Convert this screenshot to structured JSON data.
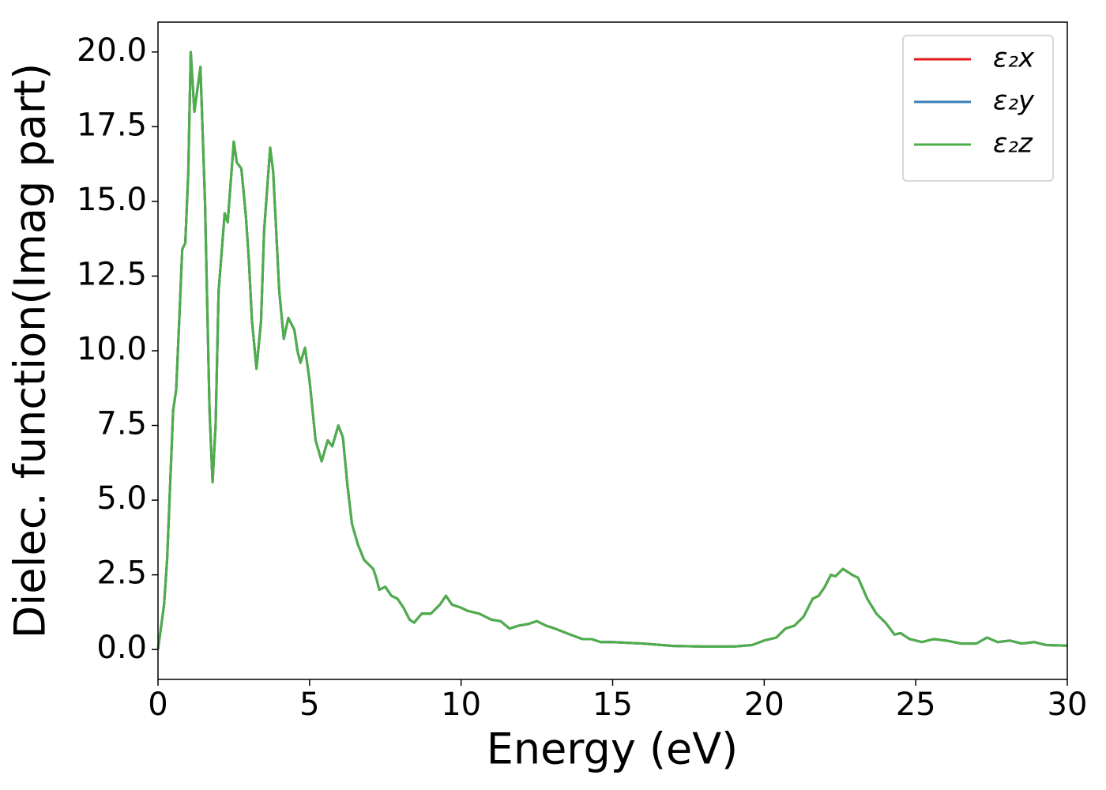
{
  "chart_data": {
    "type": "line",
    "xlabel": "Energy (eV)",
    "ylabel": "Dielec. function(Imag part)",
    "x": [
      0,
      0.2,
      0.3,
      0.4,
      0.5,
      0.6,
      0.7,
      0.8,
      0.9,
      1.0,
      1.08,
      1.2,
      1.4,
      1.55,
      1.7,
      1.8,
      1.9,
      2.0,
      2.2,
      2.3,
      2.5,
      2.6,
      2.75,
      2.9,
      3.0,
      3.1,
      3.25,
      3.4,
      3.5,
      3.7,
      3.8,
      3.9,
      4.0,
      4.15,
      4.3,
      4.5,
      4.6,
      4.7,
      4.85,
      5.0,
      5.1,
      5.2,
      5.4,
      5.6,
      5.75,
      5.95,
      6.1,
      6.25,
      6.4,
      6.6,
      6.8,
      7.1,
      7.2,
      7.3,
      7.5,
      7.7,
      7.9,
      8.1,
      8.3,
      8.45,
      8.7,
      9.0,
      9.3,
      9.5,
      9.7,
      10.0,
      10.2,
      10.6,
      11.0,
      11.3,
      11.6,
      11.9,
      12.2,
      12.5,
      12.8,
      13.1,
      13.6,
      14.0,
      14.3,
      14.6,
      15.0,
      16,
      17,
      18,
      19,
      19.6,
      20.0,
      20.4,
      20.7,
      21.0,
      21.3,
      21.6,
      21.8,
      22.0,
      22.2,
      22.35,
      22.6,
      22.9,
      23.1,
      23.4,
      23.7,
      24.0,
      24.3,
      24.5,
      24.8,
      25.2,
      25.6,
      26.0,
      26.5,
      27.0,
      27.35,
      27.7,
      28.1,
      28.5,
      28.9,
      29.3,
      30
    ],
    "series": [
      {
        "name": "ε₂x",
        "color": "#e41a1c",
        "values": [
          0,
          1.5,
          3,
          5.5,
          8.0,
          8.7,
          11,
          13.4,
          13.6,
          16,
          20.0,
          18.0,
          19.5,
          15,
          8,
          5.6,
          7.5,
          12,
          14.6,
          14.3,
          17.0,
          16.3,
          16.1,
          14.5,
          13,
          11,
          9.4,
          11,
          14,
          16.8,
          16,
          14,
          12,
          10.4,
          11.1,
          10.7,
          10.0,
          9.6,
          10.1,
          9.0,
          8,
          7.0,
          6.3,
          7.0,
          6.8,
          7.5,
          7.1,
          5.5,
          4.2,
          3.5,
          3.0,
          2.7,
          2.4,
          2.0,
          2.1,
          1.8,
          1.7,
          1.4,
          1.0,
          0.9,
          1.2,
          1.2,
          1.5,
          1.8,
          1.5,
          1.4,
          1.3,
          1.2,
          1.0,
          0.95,
          0.7,
          0.8,
          0.85,
          0.95,
          0.8,
          0.7,
          0.5,
          0.35,
          0.35,
          0.25,
          0.25,
          0.2,
          0.12,
          0.1,
          0.1,
          0.15,
          0.3,
          0.4,
          0.7,
          0.8,
          1.1,
          1.7,
          1.8,
          2.1,
          2.5,
          2.45,
          2.7,
          2.5,
          2.4,
          1.7,
          1.2,
          0.9,
          0.5,
          0.55,
          0.35,
          0.25,
          0.35,
          0.3,
          0.2,
          0.2,
          0.4,
          0.25,
          0.3,
          0.2,
          0.25,
          0.15,
          0.13
        ]
      },
      {
        "name": "ε₂y",
        "color": "#377eb8",
        "values": [
          0,
          1.5,
          3,
          5.5,
          8.0,
          8.7,
          11,
          13.4,
          13.6,
          16,
          20.0,
          18.0,
          19.5,
          15,
          8,
          5.6,
          7.5,
          12,
          14.6,
          14.3,
          17.0,
          16.3,
          16.1,
          14.5,
          13,
          11,
          9.4,
          11,
          14,
          16.8,
          16,
          14,
          12,
          10.4,
          11.1,
          10.7,
          10.0,
          9.6,
          10.1,
          9.0,
          8,
          7.0,
          6.3,
          7.0,
          6.8,
          7.5,
          7.1,
          5.5,
          4.2,
          3.5,
          3.0,
          2.7,
          2.4,
          2.0,
          2.1,
          1.8,
          1.7,
          1.4,
          1.0,
          0.9,
          1.2,
          1.2,
          1.5,
          1.8,
          1.5,
          1.4,
          1.3,
          1.2,
          1.0,
          0.95,
          0.7,
          0.8,
          0.85,
          0.95,
          0.8,
          0.7,
          0.5,
          0.35,
          0.35,
          0.25,
          0.25,
          0.2,
          0.12,
          0.1,
          0.1,
          0.15,
          0.3,
          0.4,
          0.7,
          0.8,
          1.1,
          1.7,
          1.8,
          2.1,
          2.5,
          2.45,
          2.7,
          2.5,
          2.4,
          1.7,
          1.2,
          0.9,
          0.5,
          0.55,
          0.35,
          0.25,
          0.35,
          0.3,
          0.2,
          0.2,
          0.4,
          0.25,
          0.3,
          0.2,
          0.25,
          0.15,
          0.13
        ]
      },
      {
        "name": "ε₂z",
        "color": "#4daf4a",
        "values": [
          0,
          1.5,
          3,
          5.5,
          8.0,
          8.7,
          11,
          13.4,
          13.6,
          16,
          20.0,
          18.0,
          19.5,
          15,
          8,
          5.6,
          7.5,
          12,
          14.6,
          14.3,
          17.0,
          16.3,
          16.1,
          14.5,
          13,
          11,
          9.4,
          11,
          14,
          16.8,
          16,
          14,
          12,
          10.4,
          11.1,
          10.7,
          10.0,
          9.6,
          10.1,
          9.0,
          8,
          7.0,
          6.3,
          7.0,
          6.8,
          7.5,
          7.1,
          5.5,
          4.2,
          3.5,
          3.0,
          2.7,
          2.4,
          2.0,
          2.1,
          1.8,
          1.7,
          1.4,
          1.0,
          0.9,
          1.2,
          1.2,
          1.5,
          1.8,
          1.5,
          1.4,
          1.3,
          1.2,
          1.0,
          0.95,
          0.7,
          0.8,
          0.85,
          0.95,
          0.8,
          0.7,
          0.5,
          0.35,
          0.35,
          0.25,
          0.25,
          0.2,
          0.12,
          0.1,
          0.1,
          0.15,
          0.3,
          0.4,
          0.7,
          0.8,
          1.1,
          1.7,
          1.8,
          2.1,
          2.5,
          2.45,
          2.7,
          2.5,
          2.4,
          1.7,
          1.2,
          0.9,
          0.5,
          0.55,
          0.35,
          0.25,
          0.35,
          0.3,
          0.2,
          0.2,
          0.4,
          0.25,
          0.3,
          0.2,
          0.25,
          0.15,
          0.13
        ]
      }
    ],
    "xlim": [
      0,
      30
    ],
    "ylim": [
      -1,
      21
    ],
    "xticks": [
      0,
      5,
      10,
      15,
      20,
      25,
      30
    ],
    "yticks": [
      {
        "value": 0,
        "label": "0.0"
      },
      2.5,
      {
        "value": 5,
        "label": "5.0"
      },
      7.5,
      {
        "value": 10,
        "label": "10.0"
      },
      12.5,
      {
        "value": 15,
        "label": "15.0"
      },
      17.5,
      {
        "value": 20,
        "label": "20.0"
      }
    ],
    "legend": "upper right",
    "grid": false
  }
}
